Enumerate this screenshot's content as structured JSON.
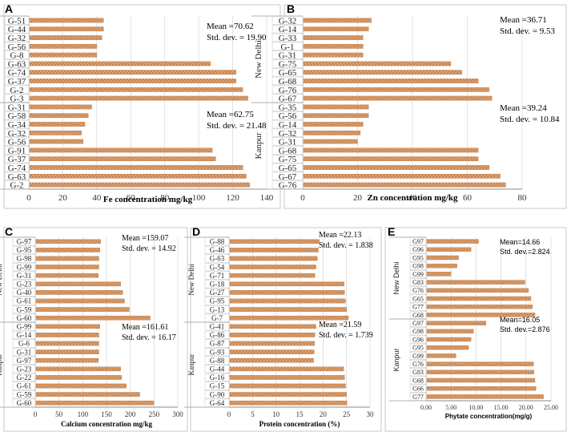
{
  "colors": {
    "bar": "#c8844e",
    "bar_stripe": "#e6b48a",
    "axis": "#888888",
    "grid": "#cccccc",
    "text": "#000000"
  },
  "chart_data": [
    {
      "panel": "A",
      "type": "bar",
      "orientation": "horizontal",
      "xlabel": "Fe concentration mg/kg",
      "xlim": [
        0,
        140
      ],
      "xticks": [
        0,
        20,
        40,
        60,
        80,
        100,
        120,
        140
      ],
      "groups": [
        {
          "name": "New Delhi",
          "categories": [
            "G-51",
            "G-44",
            "G-32",
            "G-56",
            "G-8",
            "G-63",
            "G-74",
            "G-37",
            "G-2",
            "G-3"
          ],
          "values": [
            44,
            44,
            43,
            40,
            40,
            107,
            122,
            122,
            126,
            129
          ],
          "stats": {
            "mean": "Mean =70.62",
            "sd": "Std. dev. = 19.90"
          }
        },
        {
          "name": "Kanpur",
          "categories": [
            "G-31",
            "G-58",
            "G-34",
            "G-32",
            "G-56",
            "G-91",
            "G-37",
            "G-74",
            "G-63",
            "G-2"
          ],
          "values": [
            37,
            35,
            33,
            31,
            32,
            108,
            110,
            126,
            128,
            130
          ],
          "stats": {
            "mean": "Mean =62.75",
            "sd": "Std. dev. = 21.48"
          }
        }
      ]
    },
    {
      "panel": "B",
      "type": "bar",
      "orientation": "horizontal",
      "xlabel": "Zn concentration mg/kg",
      "xlim": [
        0,
        80
      ],
      "xticks": [
        0,
        20,
        40,
        60,
        80
      ],
      "groups": [
        {
          "name": "New Delhi",
          "categories": [
            "G-32",
            "G-14",
            "G-33",
            "G-1",
            "G-31",
            "G-75",
            "G-65",
            "G-68",
            "G-76",
            "G-67"
          ],
          "values": [
            25,
            24,
            22,
            22,
            22,
            54,
            58,
            64,
            68,
            69
          ],
          "stats": {
            "mean": "Mean =36.71",
            "sd": "Std. dev.   = 9.53"
          }
        },
        {
          "name": "Kanpur",
          "categories": [
            "G-35",
            "G-56",
            "G-14",
            "G-32",
            "G-31",
            "G-68",
            "G-75",
            "G-65",
            "G-67",
            "G-76"
          ],
          "values": [
            24,
            24,
            22,
            21,
            20,
            64,
            64,
            68,
            72,
            74
          ],
          "stats": {
            "mean": "Mean =39.24",
            "sd": "Std. dev.   = 10.84"
          }
        }
      ]
    },
    {
      "panel": "C",
      "type": "bar",
      "orientation": "horizontal",
      "xlabel": "Calcium concentration mg/kg",
      "xlim": [
        0,
        300
      ],
      "xticks": [
        0,
        50,
        100,
        150,
        200,
        250,
        300
      ],
      "groups": [
        {
          "name": "New Delhi",
          "categories": [
            "G-97",
            "G-95",
            "G-98",
            "G-99",
            "G-31",
            "G-23",
            "G-40",
            "G-61",
            "G-59",
            "G-60"
          ],
          "values": [
            138,
            136,
            134,
            134,
            133,
            180,
            184,
            188,
            198,
            242
          ],
          "stats": {
            "mean": "Mean =159.07",
            "sd": "Std. dev. = 14.92"
          }
        },
        {
          "name": "Kanpur",
          "categories": [
            "G-99",
            "G-14",
            "G-6",
            "G-31",
            "G-97",
            "G-23",
            "G-22",
            "G-61",
            "G-59",
            "G-60"
          ],
          "values": [
            136,
            134,
            134,
            134,
            133,
            180,
            182,
            192,
            220,
            250
          ],
          "stats": {
            "mean": "Mean =161.61",
            "sd": "Std. dev. = 16.17"
          }
        }
      ]
    },
    {
      "panel": "D",
      "type": "bar",
      "orientation": "horizontal",
      "xlabel": "Protein concentration (%)",
      "xlim": [
        0,
        30
      ],
      "xticks": [
        0,
        5,
        10,
        15,
        20,
        25,
        30
      ],
      "groups": [
        {
          "name": "New Delhi",
          "categories": [
            "G-88",
            "G-46",
            "G-63",
            "G-54",
            "G-71",
            "G-18",
            "G-27",
            "G-95",
            "G-13",
            "G-7"
          ],
          "values": [
            19.2,
            19.0,
            18.8,
            18.5,
            18.3,
            24.5,
            24.6,
            24.8,
            25.0,
            25.4
          ],
          "stats": {
            "mean": "Mean =22.13",
            "sd": "Std. dev. = 1.838"
          }
        },
        {
          "name": "Kanpur",
          "categories": [
            "G-41",
            "G-86",
            "G-87",
            "G-93",
            "G-88",
            "G-44",
            "G-16",
            "G-15",
            "G-90",
            "G-64"
          ],
          "values": [
            18.5,
            18.3,
            18.2,
            18.1,
            18.0,
            24.4,
            24.6,
            24.8,
            25.0,
            25.1
          ],
          "stats": {
            "mean": "Mean =21.59",
            "sd": "Std. dev. = 1.739"
          }
        }
      ]
    },
    {
      "panel": "E",
      "type": "bar",
      "orientation": "horizontal",
      "xlabel": "Phytate concentration(mg/g)",
      "xlim": [
        0,
        25
      ],
      "xticks": [
        "0.00",
        "5.00",
        "10.00",
        "15.00",
        "20.00",
        "25.00"
      ],
      "groups": [
        {
          "name": "New Delhi",
          "categories": [
            "G97",
            "G96",
            "G95",
            "G98",
            "G99",
            "G83",
            "G76",
            "G65",
            "G77",
            "G68"
          ],
          "values": [
            10.5,
            9.0,
            6.5,
            6.2,
            5.0,
            19.8,
            20.5,
            21.0,
            21.3,
            21.8
          ],
          "stats": {
            "mean": "Mean=14.66",
            "sd": "Std. dev.=2.824"
          }
        },
        {
          "name": "Kanpur",
          "categories": [
            "G97",
            "G98",
            "G96",
            "G95",
            "G99",
            "G76",
            "G83",
            "G68",
            "G66",
            "G77"
          ],
          "values": [
            12.0,
            9.5,
            9.0,
            8.5,
            6.0,
            21.5,
            21.6,
            21.8,
            22.0,
            23.5
          ],
          "stats": {
            "mean": "Mean=16.05",
            "sd": "Std. dev.=2.876"
          }
        }
      ]
    }
  ]
}
